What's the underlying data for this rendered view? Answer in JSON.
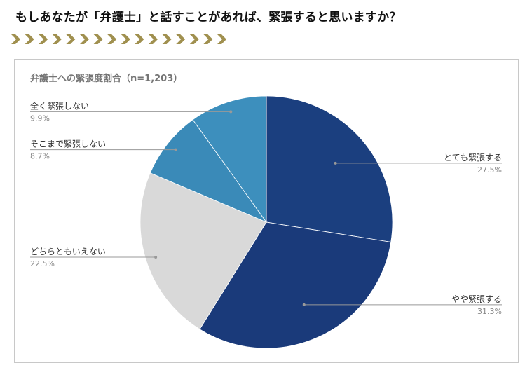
{
  "page": {
    "heading": "もしあなたが「弁護士」と話すことがあれば、緊張すると思いますか？",
    "chevron_color": "#a0904f"
  },
  "chart_data": {
    "type": "pie",
    "title": "弁護士への緊張度割合（n=1,203）",
    "start_angle_deg": 0,
    "direction": "clockwise",
    "slices": [
      {
        "label": "とても緊張する",
        "value": 27.5,
        "display": "27.5%",
        "color": "#1b3f7f",
        "label_side": "right"
      },
      {
        "label": "やや緊張する",
        "value": 31.3,
        "display": "31.3%",
        "color": "#1a3a7a",
        "label_side": "right"
      },
      {
        "label": "どちらともいえない",
        "value": 22.5,
        "display": "22.5%",
        "color": "#d9d9d9",
        "label_side": "left"
      },
      {
        "label": "そこまで緊張しない",
        "value": 8.7,
        "display": "8.7%",
        "color": "#3a8ab8",
        "label_side": "left"
      },
      {
        "label": "全く緊張しない",
        "value": 9.9,
        "display": "9.9%",
        "color": "#3d8fbd",
        "label_side": "left"
      }
    ],
    "legend": "none",
    "label_color": "#333333",
    "value_color": "#888888",
    "leader_color": "#999999",
    "title_color": "#757575"
  }
}
